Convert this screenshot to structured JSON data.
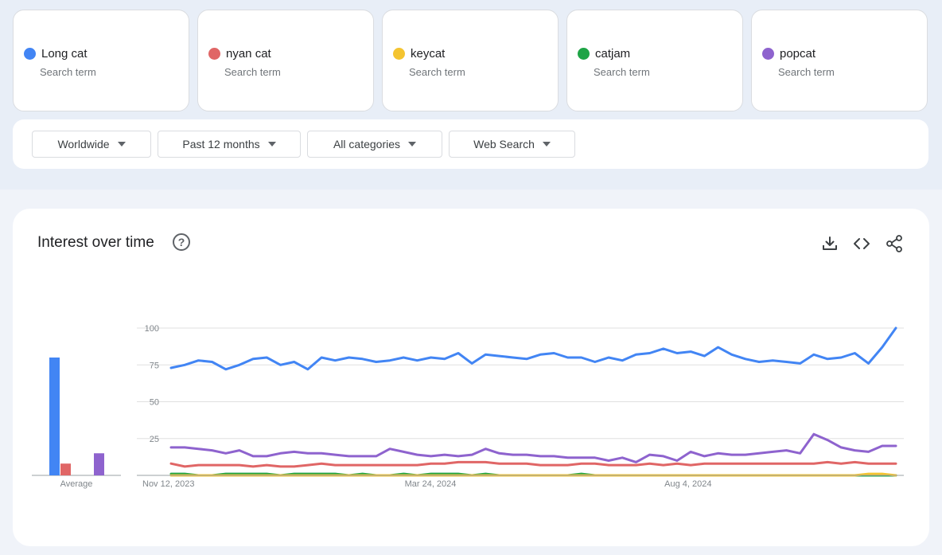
{
  "terms": [
    {
      "name": "Long cat",
      "sub": "Search term",
      "color": "#4285f4"
    },
    {
      "name": "nyan cat",
      "sub": "Search term",
      "color": "#e06666"
    },
    {
      "name": "keycat",
      "sub": "Search term",
      "color": "#f4c430"
    },
    {
      "name": "catjam",
      "sub": "Search term",
      "color": "#1ea446"
    },
    {
      "name": "popcat",
      "sub": "Search term",
      "color": "#8e63ce"
    }
  ],
  "filters": {
    "region": "Worldwide",
    "time": "Past 12 months",
    "category": "All categories",
    "search_type": "Web Search"
  },
  "card": {
    "title": "Interest over time",
    "help_glyph": "?",
    "icons": [
      "download-icon",
      "embed-code-icon",
      "share-icon"
    ]
  },
  "chart_data": {
    "type": "line",
    "title": "Interest over time",
    "ylim": [
      0,
      100
    ],
    "y_ticks": [
      "100",
      "75",
      "50",
      "25"
    ],
    "x_labels": [
      {
        "index": 0,
        "label": "Nov 12, 2023"
      },
      {
        "index": 19,
        "label": "Mar 24, 2024"
      },
      {
        "index": 38,
        "label": "Aug 4, 2024"
      }
    ],
    "average_label": "Average",
    "averages": [
      {
        "name": "Long cat",
        "value": 80
      },
      {
        "name": "nyan cat",
        "value": 8
      },
      {
        "name": "keycat",
        "value": 0
      },
      {
        "name": "catjam",
        "value": 0
      },
      {
        "name": "popcat",
        "value": 15
      }
    ],
    "series": [
      {
        "name": "Long cat",
        "color": "#4285f4",
        "values": [
          73,
          75,
          78,
          77,
          72,
          75,
          79,
          80,
          75,
          77,
          72,
          80,
          78,
          80,
          79,
          77,
          78,
          80,
          78,
          80,
          79,
          83,
          76,
          82,
          81,
          80,
          79,
          82,
          83,
          80,
          80,
          77,
          80,
          78,
          82,
          83,
          86,
          83,
          84,
          81,
          87,
          82,
          79,
          77,
          78,
          77,
          76,
          82,
          79,
          80,
          83,
          76,
          87,
          100
        ]
      },
      {
        "name": "nyan cat",
        "color": "#e06666",
        "values": [
          8,
          6,
          7,
          7,
          7,
          7,
          6,
          7,
          6,
          6,
          7,
          8,
          7,
          7,
          7,
          7,
          7,
          7,
          7,
          8,
          8,
          9,
          9,
          9,
          8,
          8,
          8,
          7,
          7,
          7,
          8,
          8,
          7,
          7,
          7,
          8,
          7,
          8,
          7,
          8,
          8,
          8,
          8,
          8,
          8,
          8,
          8,
          8,
          9,
          8,
          9,
          8,
          8,
          8
        ]
      },
      {
        "name": "keycat",
        "color": "#f4c430",
        "values": [
          0,
          0,
          0,
          0,
          0,
          0,
          0,
          0,
          0,
          0,
          0,
          0,
          0,
          0,
          0,
          0,
          0,
          0,
          0,
          0,
          0,
          0,
          0,
          0,
          0,
          0,
          0,
          0,
          0,
          0,
          0,
          0,
          0,
          0,
          0,
          0,
          0,
          0,
          0,
          0,
          0,
          0,
          0,
          0,
          0,
          0,
          0,
          0,
          0,
          0,
          0,
          1,
          1,
          0
        ]
      },
      {
        "name": "catjam",
        "color": "#1ea446",
        "values": [
          1,
          1,
          0,
          0,
          1,
          1,
          1,
          1,
          0,
          1,
          1,
          1,
          1,
          0,
          1,
          0,
          0,
          1,
          0,
          1,
          1,
          1,
          0,
          1,
          0,
          0,
          0,
          0,
          0,
          0,
          1,
          0,
          0,
          0,
          0,
          0,
          0,
          0,
          0,
          0,
          0,
          0,
          0,
          0,
          0,
          0,
          0,
          0,
          0,
          0,
          0,
          0,
          0,
          0
        ]
      },
      {
        "name": "popcat",
        "color": "#8e63ce",
        "values": [
          19,
          19,
          18,
          17,
          15,
          17,
          13,
          13,
          15,
          16,
          15,
          15,
          14,
          13,
          13,
          13,
          18,
          16,
          14,
          13,
          14,
          13,
          14,
          18,
          15,
          14,
          14,
          13,
          13,
          12,
          12,
          12,
          10,
          12,
          9,
          14,
          13,
          10,
          16,
          13,
          15,
          14,
          14,
          15,
          16,
          17,
          15,
          28,
          24,
          19,
          17,
          16,
          20,
          20
        ]
      }
    ]
  }
}
